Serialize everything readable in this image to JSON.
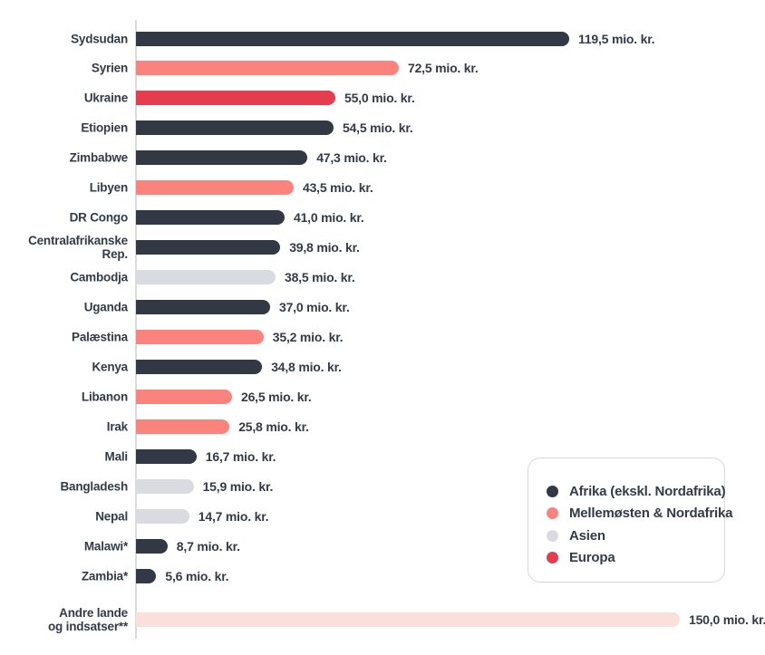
{
  "chart_data": {
    "type": "bar",
    "orientation": "horizontal",
    "unit": "mio. kr.",
    "grid": false,
    "legend_position": "bottom-right",
    "colors": {
      "afrika": "#323945",
      "mena": "#fa847d",
      "asien": "#d9dbe0",
      "europa": "#e63d4e",
      "andre": "#fbdfdb"
    },
    "rows": [
      {
        "label": "Sydsudan",
        "value": 119.5,
        "value_label": "119,5 mio. kr.",
        "region": "afrika"
      },
      {
        "label": "Syrien",
        "value": 72.5,
        "value_label": "72,5 mio. kr.",
        "region": "mena"
      },
      {
        "label": "Ukraine",
        "value": 55.0,
        "value_label": "55,0 mio. kr.",
        "region": "europa"
      },
      {
        "label": "Etiopien",
        "value": 54.5,
        "value_label": "54,5 mio. kr.",
        "region": "afrika"
      },
      {
        "label": "Zimbabwe",
        "value": 47.3,
        "value_label": "47,3 mio. kr.",
        "region": "afrika"
      },
      {
        "label": "Libyen",
        "value": 43.5,
        "value_label": "43,5 mio. kr.",
        "region": "mena"
      },
      {
        "label": "DR Congo",
        "value": 41.0,
        "value_label": "41,0 mio. kr.",
        "region": "afrika"
      },
      {
        "label": "Centralafrikanske Rep.",
        "value": 39.8,
        "value_label": "39,8 mio. kr.",
        "region": "afrika"
      },
      {
        "label": "Cambodja",
        "value": 38.5,
        "value_label": "38,5 mio. kr.",
        "region": "asien"
      },
      {
        "label": "Uganda",
        "value": 37.0,
        "value_label": "37,0 mio. kr.",
        "region": "afrika"
      },
      {
        "label": "Palæstina",
        "value": 35.2,
        "value_label": "35,2 mio. kr.",
        "region": "mena"
      },
      {
        "label": "Kenya",
        "value": 34.8,
        "value_label": "34,8 mio. kr.",
        "region": "afrika"
      },
      {
        "label": "Libanon",
        "value": 26.5,
        "value_label": "26,5 mio. kr.",
        "region": "mena"
      },
      {
        "label": "Irak",
        "value": 25.8,
        "value_label": "25,8 mio. kr.",
        "region": "mena"
      },
      {
        "label": "Mali",
        "value": 16.7,
        "value_label": "16,7 mio. kr.",
        "region": "afrika"
      },
      {
        "label": "Bangladesh",
        "value": 15.9,
        "value_label": "15,9 mio. kr.",
        "region": "asien"
      },
      {
        "label": "Nepal",
        "value": 14.7,
        "value_label": "14,7 mio. kr.",
        "region": "asien"
      },
      {
        "label": "Malawi*",
        "value": 8.7,
        "value_label": "8,7 mio. kr.",
        "region": "afrika"
      },
      {
        "label": "Zambia*",
        "value": 5.6,
        "value_label": "5,6 mio. kr.",
        "region": "afrika"
      },
      {
        "label": "Andre lande og indsatser**",
        "label_lines": [
          "Andre lande",
          "og indsatser**"
        ],
        "value": 150.0,
        "value_label": "150,0 mio. kr.",
        "region": "andre",
        "footer": true
      }
    ],
    "legend": [
      {
        "key": "afrika",
        "label": "Afrika (ekskl. Nordafrika)",
        "color": "#323945"
      },
      {
        "key": "mena",
        "label": "Mellemøsten & Nordafrika",
        "color": "#fa847d"
      },
      {
        "key": "asien",
        "label": "Asien",
        "color": "#d9dbe0"
      },
      {
        "key": "europa",
        "label": "Europa",
        "color": "#e63d4e"
      }
    ],
    "xlim": [
      0,
      150
    ],
    "value_format": "danish-decimal-comma"
  }
}
